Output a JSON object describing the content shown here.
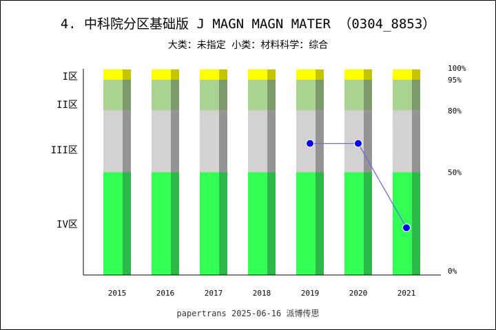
{
  "header": {
    "title": "4. 中科院分区基础版 J MAGN MAGN MATER （0304_8853）",
    "subtitle": "大类：未指定 小类：材料科学：综合"
  },
  "footer": {
    "text": "papertrans 2025-06-16 派博传思"
  },
  "chart_data": {
    "type": "bar",
    "categories": [
      "2015",
      "2016",
      "2017",
      "2018",
      "2019",
      "2020",
      "2021"
    ],
    "percent_ticks": [
      "0%",
      "50%",
      "80%",
      "95%",
      "100%"
    ],
    "zone_labels": [
      "I区",
      "II区",
      "III区",
      "IV区"
    ],
    "bands": [
      {
        "zone": "IV区",
        "from": 0,
        "to": 50,
        "color": "#33ff55",
        "side_color": "#2db84a"
      },
      {
        "zone": "III区",
        "from": 50,
        "to": 80,
        "color": "#d3d1d1",
        "side_color": "#959393"
      },
      {
        "zone": "II区",
        "from": 80,
        "to": 95,
        "color": "#aad291",
        "side_color": "#7d9a6b"
      },
      {
        "zone": "I区",
        "from": 95,
        "to": 100,
        "color": "#ffff00",
        "side_color": "#c4c400"
      }
    ],
    "series": [
      {
        "points": [
          {
            "x": "2019",
            "y": 64
          },
          {
            "x": "2020",
            "y": 64
          },
          {
            "x": "2021",
            "y": 23
          }
        ],
        "color": "#0000ee",
        "line_color": "#6a6aee"
      }
    ],
    "ylim": [
      0,
      100
    ]
  }
}
